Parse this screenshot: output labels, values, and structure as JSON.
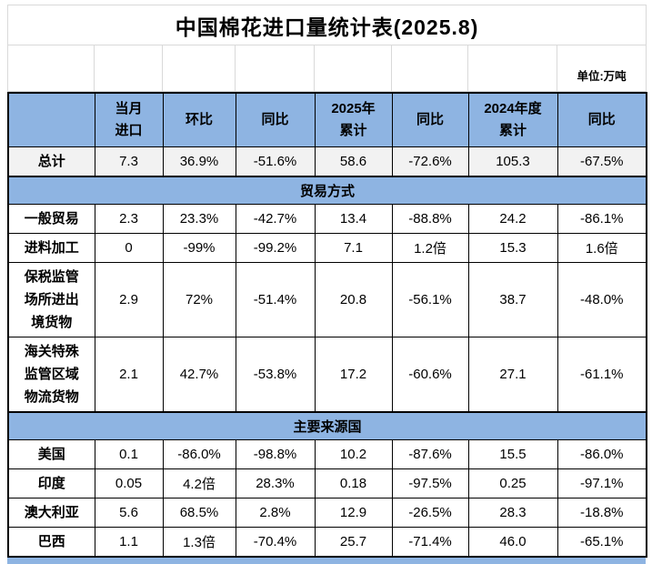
{
  "title": "中国棉花进口量统计表(2025.8)",
  "unit_label": "单位:万吨",
  "colors": {
    "header_blue": "#8EB4E2",
    "total_row_shade": "#F2F2F2",
    "grid_line_light": "#D9D9D9",
    "table_border": "#000000"
  },
  "table": {
    "columns": [
      "",
      "当月\n进口",
      "环比",
      "同比",
      "2025年\n累计",
      "同比",
      "2024年度\n累计",
      "同比"
    ],
    "rows": [
      {
        "kind": "data",
        "shaded": true,
        "label": "总计",
        "values": [
          "7.3",
          "36.9%",
          "-51.6%",
          "58.6",
          "-72.6%",
          "105.3",
          "-67.5%"
        ]
      },
      {
        "kind": "section",
        "label": "贸易方式"
      },
      {
        "kind": "data",
        "shaded": false,
        "label": "一般贸易",
        "values": [
          "2.3",
          "23.3%",
          "-42.7%",
          "13.4",
          "-88.8%",
          "24.2",
          "-86.1%"
        ]
      },
      {
        "kind": "data",
        "shaded": false,
        "label": "进料加工",
        "values": [
          "0",
          "-99%",
          "-99.2%",
          "7.1",
          "1.2倍",
          "15.3",
          "1.6倍"
        ]
      },
      {
        "kind": "data",
        "shaded": false,
        "label": "保税监管\n场所进出\n境货物",
        "values": [
          "2.9",
          "72%",
          "-51.4%",
          "20.8",
          "-56.1%",
          "38.7",
          "-48.0%"
        ]
      },
      {
        "kind": "data",
        "shaded": false,
        "label": "海关特殊\n监管区域\n物流货物",
        "values": [
          "2.1",
          "42.7%",
          "-53.8%",
          "17.2",
          "-60.6%",
          "27.1",
          "-61.1%"
        ]
      },
      {
        "kind": "section",
        "label": "主要来源国"
      },
      {
        "kind": "data",
        "shaded": false,
        "label": "美国",
        "values": [
          "0.1",
          "-86.0%",
          "-98.8%",
          "10.2",
          "-87.6%",
          "15.5",
          "-86.0%"
        ]
      },
      {
        "kind": "data",
        "shaded": false,
        "label": "印度",
        "values": [
          "0.05",
          "4.2倍",
          "28.3%",
          "0.18",
          "-97.5%",
          "0.25",
          "-97.1%"
        ]
      },
      {
        "kind": "data",
        "shaded": false,
        "label": "澳大利亚",
        "values": [
          "5.6",
          "68.5%",
          "2.8%",
          "12.9",
          "-26.5%",
          "28.3",
          "-18.8%"
        ]
      },
      {
        "kind": "data",
        "shaded": false,
        "label": "巴西",
        "values": [
          "1.1",
          "1.3倍",
          "-70.4%",
          "25.7",
          "-71.4%",
          "46.0",
          "-65.1%"
        ]
      }
    ]
  }
}
